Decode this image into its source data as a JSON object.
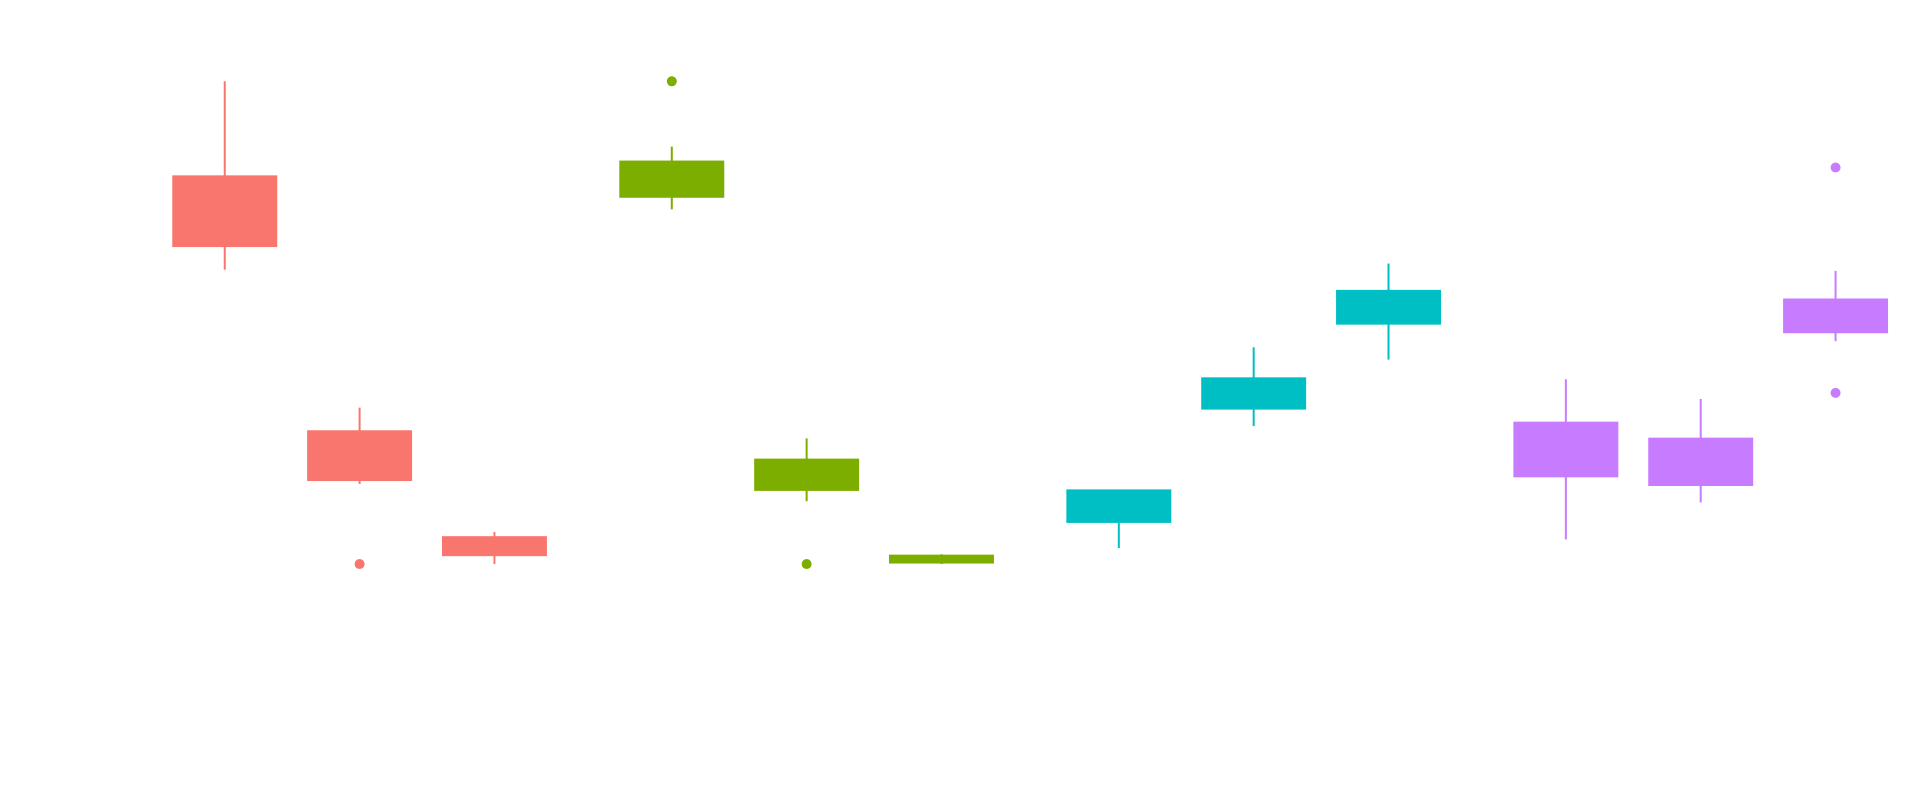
{
  "chart_data": {
    "type": "boxplot",
    "ylim": [
      0,
      600
    ],
    "series": [
      {
        "color": "#F8766D",
        "boxes": [
          {
            "low": 401,
            "q1": 420,
            "q3": 477,
            "high": 554,
            "outliers": []
          },
          {
            "low": 227,
            "q1": 230,
            "q3": 270,
            "high": 289,
            "outliers": [
              162
            ]
          },
          {
            "low": 162,
            "q1": 169,
            "q3": 184,
            "high": 188,
            "outliers": []
          }
        ]
      },
      {
        "color": "#7CAE00",
        "boxes": [
          {
            "low": 450,
            "q1": 460,
            "q3": 489,
            "high": 501,
            "outliers": [
              554
            ]
          },
          {
            "low": 213,
            "q1": 222,
            "q3": 247,
            "high": 264,
            "outliers": [
              162
            ]
          },
          {
            "low": 162,
            "q1": 163,
            "q3": 169,
            "high": 170,
            "outliers": []
          }
        ]
      },
      {
        "color": "#00BFC4",
        "boxes": [
          {
            "low": 175,
            "q1": 196,
            "q3": 222,
            "high": 222,
            "outliers": []
          },
          {
            "low": 274,
            "q1": 288,
            "q3": 313,
            "high": 338,
            "outliers": []
          },
          {
            "low": 328,
            "q1": 357,
            "q3": 384,
            "high": 406,
            "outliers": []
          }
        ]
      },
      {
        "color": "#C77CFF",
        "boxes": [
          {
            "low": 182,
            "q1": 233,
            "q3": 277,
            "high": 312,
            "outliers": []
          },
          {
            "low": 212,
            "q1": 226,
            "q3": 264,
            "high": 296,
            "outliers": []
          },
          {
            "low": 343,
            "q1": 350,
            "q3": 377,
            "high": 400,
            "outliers": [
              484,
              301
            ]
          }
        ]
      }
    ]
  }
}
